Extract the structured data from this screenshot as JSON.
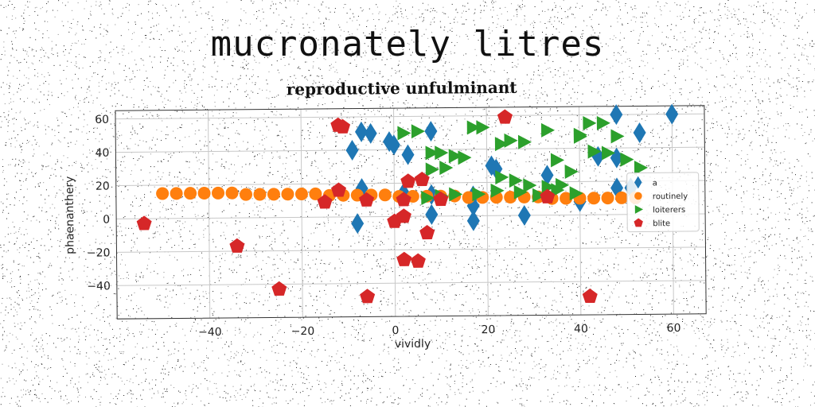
{
  "page": {
    "title": "mucronately litres"
  },
  "chart_data": {
    "type": "scatter",
    "title": "reproductive unfulminant",
    "xlabel": "vividly",
    "ylabel": "phaenanthery",
    "xlim": [
      -60,
      67
    ],
    "ylim": [
      -60,
      65
    ],
    "xticks": [
      -40,
      -20,
      0,
      20,
      40,
      60
    ],
    "yticks": [
      -40,
      -20,
      0,
      20,
      40,
      60
    ],
    "grid": true,
    "legend_position": "center-right",
    "colors": {
      "a": "#1f77b4",
      "routinely": "#ff7f0e",
      "loiterers": "#2ca02c",
      "blite": "#d62728"
    },
    "series": [
      {
        "name": "a",
        "marker": "diamond",
        "points": [
          [
            -7,
            51
          ],
          [
            -5,
            50
          ],
          [
            -9,
            40
          ],
          [
            -1,
            45
          ],
          [
            0,
            43
          ],
          [
            3,
            37
          ],
          [
            8,
            51
          ],
          [
            -7,
            17
          ],
          [
            2,
            14
          ],
          [
            8,
            13
          ],
          [
            8,
            1
          ],
          [
            -8,
            -4
          ],
          [
            17,
            12
          ],
          [
            17,
            -3
          ],
          [
            17,
            6
          ],
          [
            21,
            30
          ],
          [
            28,
            0
          ],
          [
            33,
            24
          ],
          [
            44,
            35
          ],
          [
            48,
            16
          ],
          [
            48,
            60
          ],
          [
            53,
            49
          ],
          [
            60,
            60
          ],
          [
            48,
            34
          ],
          [
            51,
            16
          ],
          [
            40,
            8
          ],
          [
            22,
            28
          ]
        ]
      },
      {
        "name": "routinely",
        "marker": "circle",
        "points": [
          [
            -50,
            15
          ],
          [
            -47,
            15
          ],
          [
            -44,
            15
          ],
          [
            -41,
            15
          ],
          [
            -38,
            15
          ],
          [
            -35,
            15
          ],
          [
            -32,
            14
          ],
          [
            -29,
            14
          ],
          [
            -26,
            14
          ],
          [
            -23,
            14
          ],
          [
            -20,
            14
          ],
          [
            -17,
            14
          ],
          [
            -14,
            13
          ],
          [
            -11,
            13
          ],
          [
            -8,
            13
          ],
          [
            -5,
            13
          ],
          [
            -2,
            13
          ],
          [
            1,
            12
          ],
          [
            4,
            12
          ],
          [
            7,
            12
          ],
          [
            10,
            12
          ],
          [
            13,
            12
          ],
          [
            16,
            11
          ],
          [
            19,
            11
          ],
          [
            22,
            11
          ],
          [
            25,
            11
          ],
          [
            28,
            11
          ],
          [
            31,
            11
          ],
          [
            34,
            10
          ],
          [
            37,
            10
          ],
          [
            40,
            10
          ],
          [
            43,
            10
          ],
          [
            46,
            10
          ],
          [
            49,
            10
          ],
          [
            52,
            10
          ]
        ]
      },
      {
        "name": "loiterers",
        "marker": "triangle-right",
        "points": [
          [
            2,
            50
          ],
          [
            5,
            51
          ],
          [
            8,
            38
          ],
          [
            10,
            38
          ],
          [
            13,
            36
          ],
          [
            15,
            35
          ],
          [
            17,
            53
          ],
          [
            19,
            53
          ],
          [
            23,
            43
          ],
          [
            25,
            45
          ],
          [
            28,
            44
          ],
          [
            33,
            51
          ],
          [
            35,
            33
          ],
          [
            38,
            26
          ],
          [
            40,
            48
          ],
          [
            43,
            38
          ],
          [
            46,
            37
          ],
          [
            50,
            33
          ],
          [
            53,
            28
          ],
          [
            8,
            28
          ],
          [
            11,
            29
          ],
          [
            23,
            23
          ],
          [
            26,
            21
          ],
          [
            29,
            18
          ],
          [
            33,
            17
          ],
          [
            36,
            18
          ],
          [
            39,
            13
          ],
          [
            10,
            12
          ],
          [
            13,
            13
          ],
          [
            18,
            13
          ],
          [
            22,
            15
          ],
          [
            27,
            14
          ],
          [
            31,
            12
          ],
          [
            35,
            15
          ],
          [
            40,
            47
          ],
          [
            42,
            55
          ],
          [
            45,
            55
          ],
          [
            48,
            47
          ],
          [
            7,
            11
          ]
        ]
      },
      {
        "name": "blite",
        "marker": "pentagon",
        "points": [
          [
            -54,
            -3
          ],
          [
            -12,
            55
          ],
          [
            -11,
            54
          ],
          [
            -12,
            16
          ],
          [
            -15,
            9
          ],
          [
            -6,
            10
          ],
          [
            -34,
            -17
          ],
          [
            -25,
            -43
          ],
          [
            -6,
            -48
          ],
          [
            0,
            -3
          ],
          [
            2,
            0
          ],
          [
            2,
            10
          ],
          [
            3,
            21
          ],
          [
            6,
            22
          ],
          [
            10,
            10
          ],
          [
            2,
            -26
          ],
          [
            5,
            -27
          ],
          [
            7,
            -10
          ],
          [
            24,
            59
          ],
          [
            33,
            11
          ],
          [
            42,
            -49
          ]
        ]
      }
    ]
  }
}
